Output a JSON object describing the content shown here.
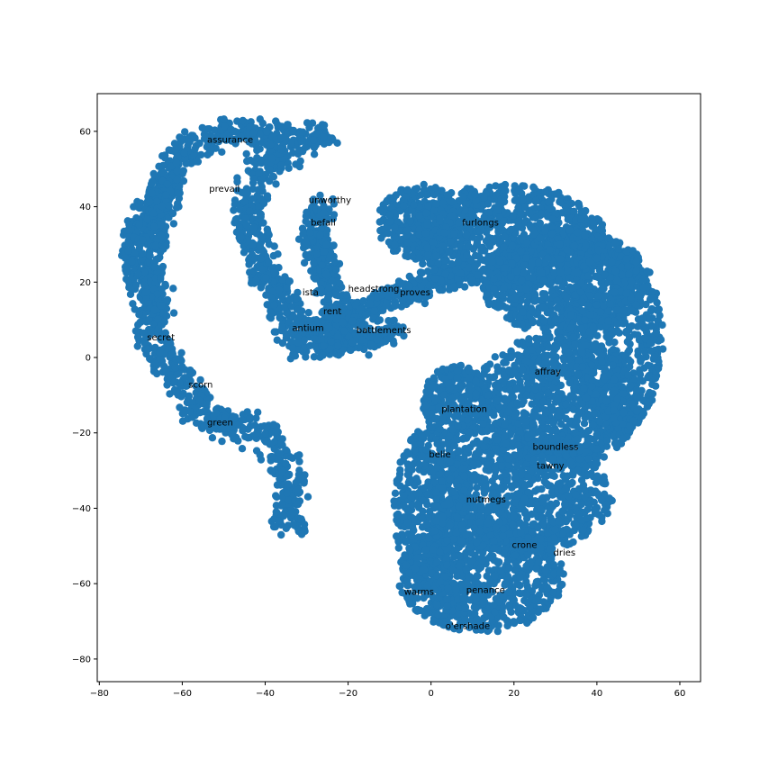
{
  "chart_data": {
    "type": "scatter",
    "title": "",
    "xlabel": "",
    "ylabel": "",
    "xlim": [
      -80.5,
      65
    ],
    "ylim": [
      -86,
      70
    ],
    "xticks": [
      -80,
      -60,
      -40,
      -20,
      0,
      20,
      40,
      60
    ],
    "yticks": [
      -80,
      -60,
      -40,
      -20,
      0,
      20,
      40,
      60
    ],
    "xtick_labels": [
      "−80",
      "−60",
      "−40",
      "−20",
      "0",
      "20",
      "40",
      "60"
    ],
    "ytick_labels": [
      "−80",
      "−60",
      "−40",
      "−20",
      "0",
      "20",
      "40",
      "60"
    ],
    "grid": false,
    "point_color": "#1f77b4",
    "marker": "circle",
    "labels": [
      {
        "text": "assurance",
        "x": -54,
        "y": 57
      },
      {
        "text": "prevail",
        "x": -53.5,
        "y": 44
      },
      {
        "text": "unworthy",
        "x": -29.5,
        "y": 41
      },
      {
        "text": "befall",
        "x": -29,
        "y": 35
      },
      {
        "text": "furlongs",
        "x": 7.5,
        "y": 35
      },
      {
        "text": "ista",
        "x": -31,
        "y": 16.5
      },
      {
        "text": "headstrong",
        "x": -20,
        "y": 17.5
      },
      {
        "text": "proves",
        "x": -7.5,
        "y": 16.5
      },
      {
        "text": "rent",
        "x": -26,
        "y": 11.5
      },
      {
        "text": "antium",
        "x": -33.5,
        "y": 7
      },
      {
        "text": "battlements",
        "x": -18,
        "y": 6.5
      },
      {
        "text": "secret",
        "x": -68.5,
        "y": 4.5
      },
      {
        "text": "affray",
        "x": 25,
        "y": -4.5
      },
      {
        "text": "scorn",
        "x": -58.5,
        "y": -8
      },
      {
        "text": "plantation",
        "x": 2.5,
        "y": -14.5
      },
      {
        "text": "green",
        "x": -54,
        "y": -18
      },
      {
        "text": "boundless",
        "x": 24.5,
        "y": -24.5
      },
      {
        "text": "belie",
        "x": -0.5,
        "y": -26.5
      },
      {
        "text": "tawny",
        "x": 25.5,
        "y": -29.5
      },
      {
        "text": "nutmegs",
        "x": 8.5,
        "y": -38.5
      },
      {
        "text": "crone",
        "x": 19.5,
        "y": -50.5
      },
      {
        "text": "dries",
        "x": 29.5,
        "y": -52.5
      },
      {
        "text": "warms",
        "x": -6.5,
        "y": -63
      },
      {
        "text": "penance",
        "x": 8.5,
        "y": -62.5
      },
      {
        "text": "o'ershade",
        "x": 3.5,
        "y": -72
      }
    ],
    "regions": [
      {
        "name": "left-arc",
        "path": [
          [
            -33,
            60
          ],
          [
            -40,
            58
          ],
          [
            -48,
            61
          ],
          [
            -54,
            58
          ],
          [
            -60,
            54
          ],
          [
            -64,
            48
          ],
          [
            -66,
            42
          ],
          [
            -69,
            36
          ],
          [
            -71,
            30
          ],
          [
            -72,
            25
          ],
          [
            -69,
            20
          ],
          [
            -68,
            14
          ],
          [
            -68,
            8
          ],
          [
            -65,
            2
          ],
          [
            -62,
            -4
          ],
          [
            -58,
            -10
          ],
          [
            -54,
            -16
          ],
          [
            -48,
            -19
          ],
          [
            -42,
            -19
          ],
          [
            -38,
            -24
          ],
          [
            -34,
            -30
          ],
          [
            -33,
            -38
          ],
          [
            -35,
            -46
          ]
        ],
        "width": 7,
        "count": 950
      },
      {
        "name": "left-arc-widen",
        "path": [
          [
            -62,
            48
          ],
          [
            -66,
            36
          ],
          [
            -68,
            24
          ],
          [
            -65,
            10
          ]
        ],
        "width": 6,
        "count": 200
      },
      {
        "name": "upper-arm",
        "path": [
          [
            -24,
            60
          ],
          [
            -30,
            58
          ],
          [
            -38,
            53
          ],
          [
            -42,
            48
          ],
          [
            -44,
            38
          ],
          [
            -42,
            30
          ],
          [
            -40,
            22
          ],
          [
            -36,
            16
          ],
          [
            -34,
            8
          ],
          [
            -30,
            2
          ]
        ],
        "width": 7,
        "count": 500
      },
      {
        "name": "upper-arm-2",
        "path": [
          [
            -26,
            42
          ],
          [
            -28,
            34
          ],
          [
            -27,
            26
          ],
          [
            -24,
            18
          ],
          [
            -22,
            10
          ],
          [
            -20,
            4
          ]
        ],
        "width": 6,
        "count": 350
      },
      {
        "name": "bridge",
        "path": [
          [
            -32,
            8
          ],
          [
            -24,
            8
          ],
          [
            -16,
            12
          ],
          [
            -10,
            16
          ],
          [
            -4,
            18
          ],
          [
            2,
            20
          ],
          [
            10,
            24
          ]
        ],
        "width": 5,
        "count": 450
      },
      {
        "name": "bridge-low",
        "path": [
          [
            -28,
            2
          ],
          [
            -20,
            4
          ],
          [
            -12,
            5
          ],
          [
            -8,
            8
          ]
        ],
        "width": 4,
        "count": 200
      }
    ],
    "blobs": [
      {
        "name": "right-top",
        "cx": 18,
        "cy": 32,
        "rx": 24,
        "ry": 14,
        "count": 950
      },
      {
        "name": "right-upper",
        "cx": 32,
        "cy": 20,
        "rx": 20,
        "ry": 14,
        "count": 800
      },
      {
        "name": "right-far",
        "cx": 44,
        "cy": 5,
        "rx": 12,
        "ry": 26,
        "count": 650
      },
      {
        "name": "right-mid",
        "cx": 30,
        "cy": -12,
        "rx": 20,
        "ry": 18,
        "count": 950
      },
      {
        "name": "right-lower",
        "cx": 22,
        "cy": -36,
        "rx": 22,
        "ry": 16,
        "count": 950
      },
      {
        "name": "right-bottom",
        "cx": 12,
        "cy": -58,
        "rx": 20,
        "ry": 15,
        "count": 850
      },
      {
        "name": "left-bottom",
        "cx": 0,
        "cy": -40,
        "rx": 9,
        "ry": 22,
        "count": 450
      },
      {
        "name": "plant-area",
        "cx": 6,
        "cy": -12,
        "rx": 8,
        "ry": 10,
        "count": 300
      },
      {
        "name": "upper-left-lobe",
        "cx": -3,
        "cy": 36,
        "rx": 10,
        "ry": 10,
        "count": 300
      }
    ]
  }
}
